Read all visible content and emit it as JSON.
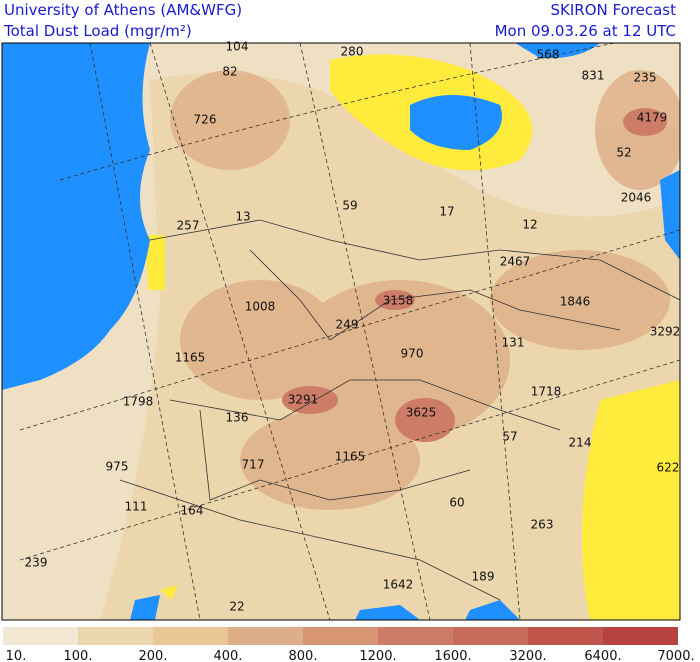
{
  "header": {
    "institution": "University of Athens (AM&WFG)",
    "field": "Total Dust Load (mgr/m²)",
    "product": "SKIRON Forecast",
    "valid": "Mon 09.03.26 at 12 UTC"
  },
  "map_labels": [
    104,
    280,
    568,
    831,
    235,
    82,
    726,
    4179,
    52,
    2046,
    257,
    13,
    59,
    17,
    12,
    2467,
    1008,
    3158,
    1846,
    3292,
    249,
    970,
    131,
    1165,
    1798,
    3291,
    3625,
    1718,
    136,
    57,
    214,
    975,
    717,
    1165,
    622,
    60,
    111,
    164,
    263,
    239,
    1642,
    189,
    22
  ],
  "legend": {
    "labels": [
      "10.",
      "100.",
      "200.",
      "400.",
      "800.",
      "1200.",
      "1600.",
      "3200.",
      "6400.",
      "7000."
    ],
    "colors": [
      "#f3e8d4",
      "#ecd6ae",
      "#e8c795",
      "#deae88",
      "#d89574",
      "#cd7c68",
      "#c66b5c",
      "#bf554b",
      "#b84240"
    ]
  }
}
